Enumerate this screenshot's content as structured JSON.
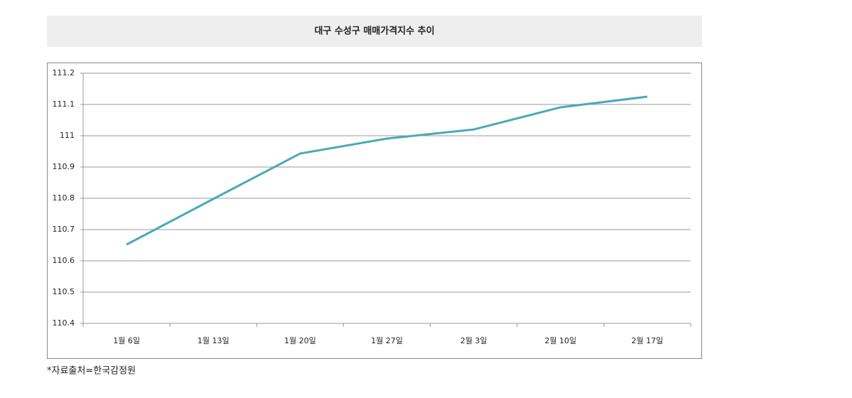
{
  "chart_data": {
    "type": "line",
    "title": "대구 수성구 매매가격지수 추이",
    "categories": [
      "1월 6일",
      "1월 13일",
      "1월 20일",
      "1월 27일",
      "2월 3일",
      "2월 10일",
      "2월 17일"
    ],
    "series": [
      {
        "name": "매매가격지수",
        "color": "#4aa9b8",
        "values": [
          110.652,
          110.798,
          110.943,
          110.991,
          111.02,
          111.091,
          111.125
        ]
      }
    ],
    "ylim": [
      110.4,
      111.2
    ],
    "yticks": [
      110.4,
      110.5,
      110.6,
      110.7,
      110.8,
      110.9,
      111,
      111.1,
      111.2
    ],
    "grid": true,
    "note": "*자료출처=한국감정원"
  }
}
